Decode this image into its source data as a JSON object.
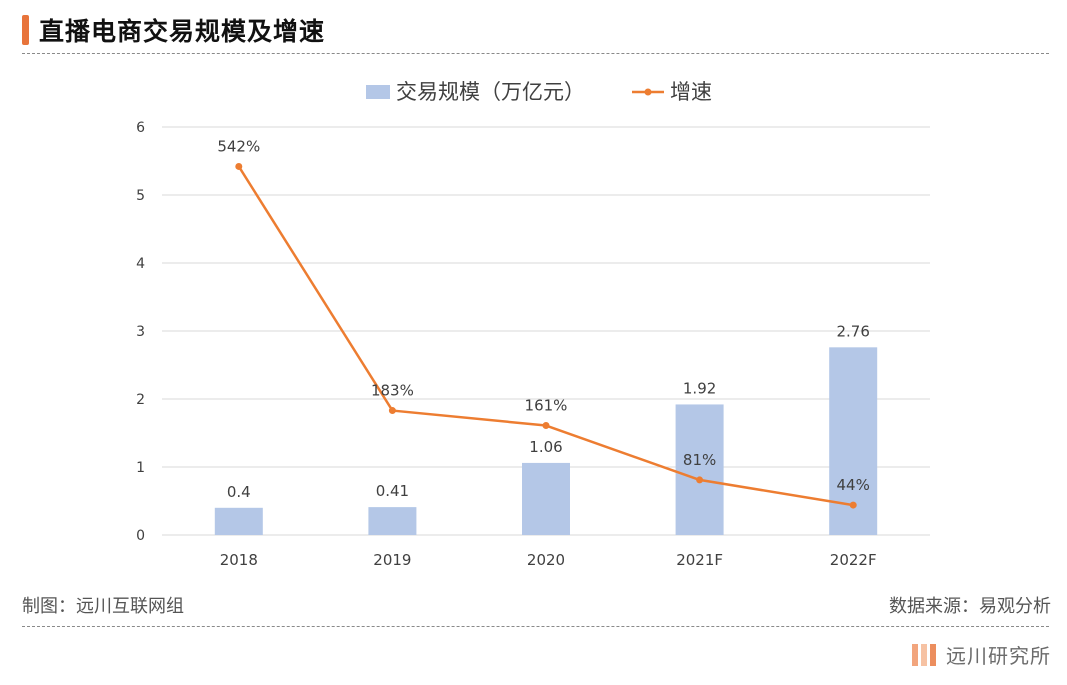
{
  "header": {
    "title": "直播电商交易规模及增速"
  },
  "footer": {
    "left_text": "制图：远川互联网组",
    "right_text": "数据来源：易观分析"
  },
  "brand": {
    "name": "远川研究所"
  },
  "colors": {
    "bar": "#B4C7E7",
    "line": "#ED7D31",
    "accent": "#E8743B",
    "grid": "#D9D9D9"
  },
  "chart_data": {
    "type": "bar+line",
    "categories": [
      "2018",
      "2019",
      "2020",
      "2021F",
      "2022F"
    ],
    "series": [
      {
        "name": "交易规模（万亿元）",
        "type": "bar",
        "values": [
          0.4,
          0.41,
          1.06,
          1.92,
          2.76
        ],
        "labels": [
          "0.4",
          "0.41",
          "1.06",
          "1.92",
          "2.76"
        ]
      },
      {
        "name": "增速",
        "type": "line",
        "values": [
          5.42,
          1.83,
          1.61,
          0.81,
          0.44
        ],
        "labels": [
          "542%",
          "183%",
          "161%",
          "81%",
          "44%"
        ]
      }
    ],
    "ylim": [
      0,
      6
    ],
    "yticks": [
      "0",
      "1",
      "2",
      "3",
      "4",
      "5",
      "6"
    ],
    "grid": true,
    "legend_position": "top"
  }
}
